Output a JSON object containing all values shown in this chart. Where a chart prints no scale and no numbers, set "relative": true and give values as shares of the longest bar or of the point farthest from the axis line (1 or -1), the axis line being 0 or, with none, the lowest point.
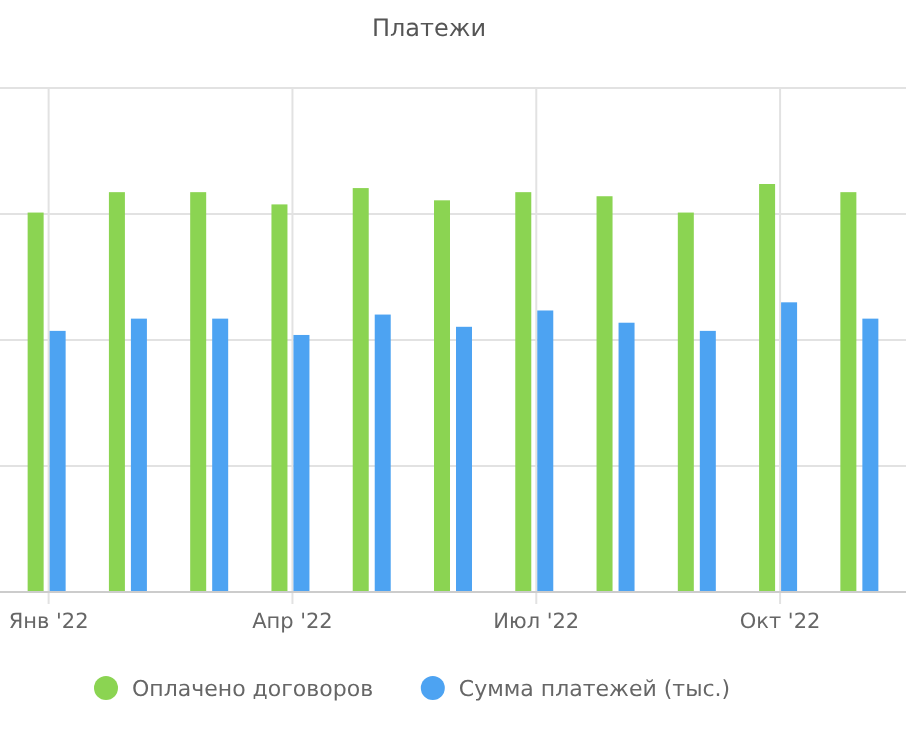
{
  "chart_data": {
    "type": "bar",
    "title": "Платежи",
    "relative": true,
    "grid": true,
    "legend": "bottom",
    "categories": [
      "Янв '22",
      null,
      null,
      "Апр '22",
      null,
      null,
      "Июл '22",
      null,
      null,
      "Окт '22",
      null
    ],
    "series": [
      {
        "name": "Оплачено договоров",
        "color": "#8bd452",
        "values": [
          0.93,
          0.98,
          0.98,
          0.95,
          0.99,
          0.96,
          0.98,
          0.97,
          0.93,
          1,
          0.98
        ]
      },
      {
        "name": "Сумма платежей (тыс.)",
        "color": "#4da3f2",
        "values": [
          0.64,
          0.67,
          0.67,
          0.63,
          0.68,
          0.65,
          0.69,
          0.66,
          0.64,
          0.71,
          0.67
        ]
      }
    ]
  }
}
